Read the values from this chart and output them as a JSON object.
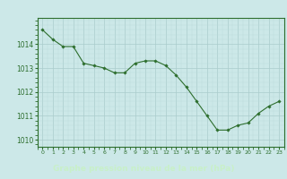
{
  "x": [
    0,
    1,
    2,
    3,
    4,
    5,
    6,
    7,
    8,
    9,
    10,
    11,
    12,
    13,
    14,
    15,
    16,
    17,
    18,
    19,
    20,
    21,
    22,
    23
  ],
  "y": [
    1014.6,
    1014.2,
    1013.9,
    1013.9,
    1013.2,
    1013.1,
    1013.0,
    1012.8,
    1012.8,
    1013.2,
    1013.3,
    1013.3,
    1013.1,
    1012.7,
    1012.2,
    1011.6,
    1011.0,
    1010.4,
    1010.4,
    1010.6,
    1010.7,
    1011.1,
    1011.4,
    1011.6
  ],
  "bg_color": "#cce8e8",
  "grid_color_major": "#aacccc",
  "grid_color_minor": "#bbdada",
  "line_color": "#2d6e2d",
  "marker_color": "#2d6e2d",
  "xlabel": "Graphe pression niveau de la mer (hPa)",
  "xlabel_color": "#c8f0c8",
  "footer_bg_color": "#2d6e2d",
  "ylabel_ticks": [
    1010,
    1011,
    1012,
    1013,
    1014
  ],
  "ylim": [
    1009.7,
    1015.1
  ],
  "xlim": [
    -0.5,
    23.5
  ],
  "tick_color": "#2d6e2d",
  "spine_color": "#2d6e2d"
}
